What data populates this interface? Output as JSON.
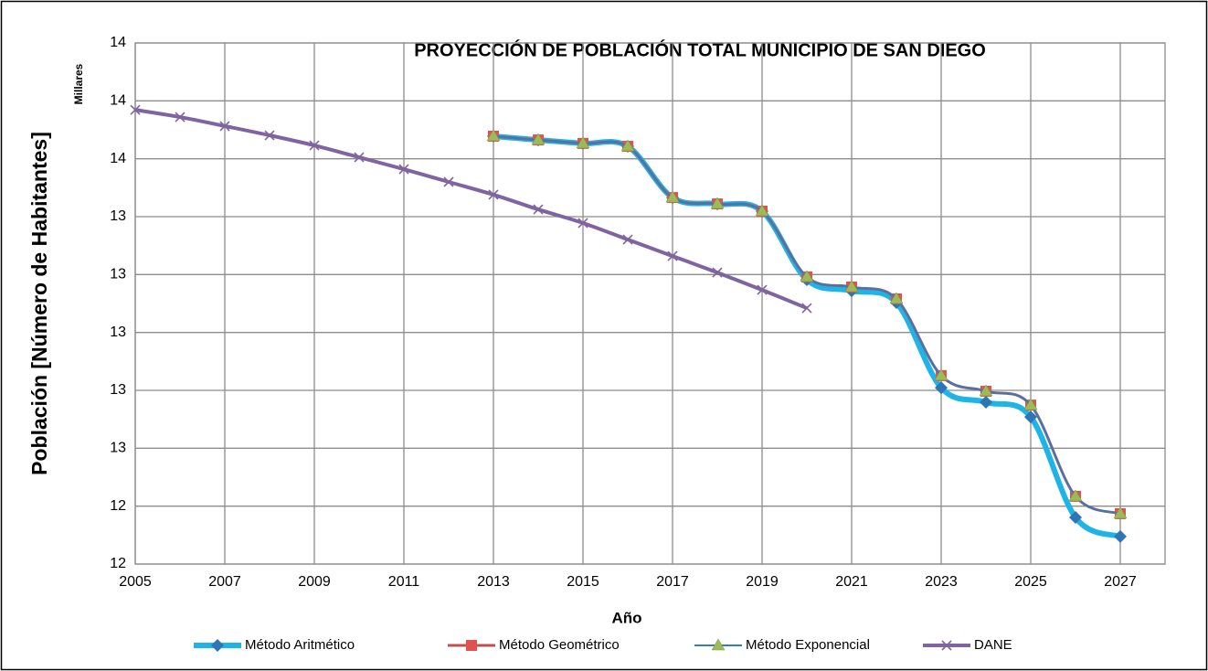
{
  "chart_data": {
    "type": "line",
    "title": "PROYECCIÓN DE POBLACIÓN TOTAL MUNICIPIO DE SAN DIEGO",
    "y_axis_label": "Población [Número de Habitantes]",
    "y_unit_label": "Millares",
    "x_axis_label": "Año",
    "x": [
      2005,
      2006,
      2007,
      2008,
      2009,
      2010,
      2011,
      2012,
      2013,
      2014,
      2015,
      2016,
      2017,
      2018,
      2019,
      2020,
      2021,
      2022,
      2023,
      2024,
      2025,
      2026,
      2027
    ],
    "series": [
      {
        "name": "Método Aritmético",
        "color": "#1fb4e8",
        "marker_color": "#2e75b6",
        "marker": "diamond",
        "values": [
          null,
          null,
          null,
          null,
          null,
          null,
          null,
          null,
          13.678,
          13.665,
          13.653,
          13.643,
          13.466,
          13.444,
          13.419,
          13.182,
          13.144,
          13.103,
          12.809,
          12.759,
          12.708,
          12.361,
          12.295
        ]
      },
      {
        "name": "Método Geométrico",
        "color": "#c0504d",
        "marker_color": "#e0524f",
        "marker": "square",
        "values": [
          null,
          null,
          null,
          null,
          null,
          null,
          null,
          null,
          13.678,
          13.665,
          13.653,
          13.643,
          13.466,
          13.444,
          13.419,
          13.192,
          13.157,
          13.116,
          12.851,
          12.797,
          12.749,
          12.434,
          12.374
        ]
      },
      {
        "name": "Método Exponencial",
        "color": "#2f7fc0",
        "marker_color": "#9bbb59",
        "marker": "triangle",
        "values": [
          null,
          null,
          null,
          null,
          null,
          null,
          null,
          null,
          13.678,
          13.665,
          13.653,
          13.643,
          13.466,
          13.444,
          13.419,
          13.192,
          13.157,
          13.116,
          12.851,
          12.797,
          12.749,
          12.434,
          12.374
        ]
      },
      {
        "name": "DANE",
        "color": "#8064a2",
        "marker_color": "#8064a2",
        "marker": "x",
        "values": [
          13.769,
          13.744,
          13.713,
          13.681,
          13.646,
          13.605,
          13.564,
          13.52,
          13.476,
          13.425,
          13.378,
          13.321,
          13.264,
          13.207,
          13.147,
          13.084,
          null,
          null,
          null,
          null,
          null,
          null,
          null
        ]
      }
    ],
    "xlim": [
      2005,
      2028
    ],
    "xticks": [
      2005,
      2007,
      2009,
      2011,
      2013,
      2015,
      2017,
      2019,
      2021,
      2023,
      2025,
      2027
    ],
    "ylim": [
      12.2,
      14.0
    ],
    "yticks": [
      {
        "value": 12.2,
        "label": "12"
      },
      {
        "value": 12.4,
        "label": "12"
      },
      {
        "value": 12.6,
        "label": "13"
      },
      {
        "value": 12.8,
        "label": "13"
      },
      {
        "value": 13.0,
        "label": "13"
      },
      {
        "value": 13.2,
        "label": "13"
      },
      {
        "value": 13.4,
        "label": "13"
      },
      {
        "value": 13.6,
        "label": "14"
      },
      {
        "value": 13.8,
        "label": "14"
      },
      {
        "value": 14.0,
        "label": "14"
      }
    ],
    "grid": true,
    "smooth": true,
    "legend": "bottom"
  }
}
